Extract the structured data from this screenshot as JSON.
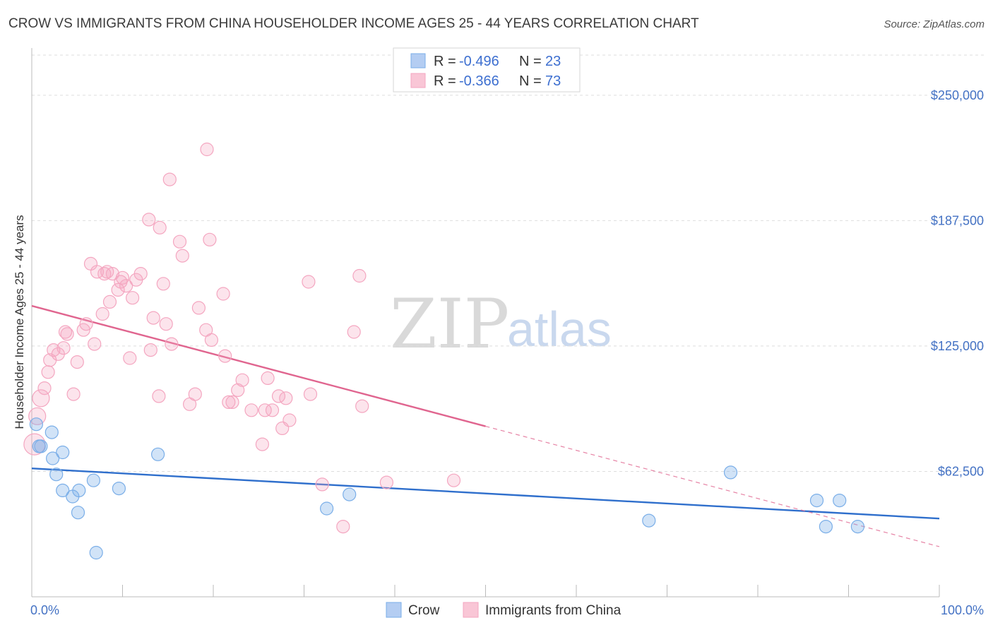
{
  "chart_data": {
    "type": "scatter",
    "title": "CROW VS IMMIGRANTS FROM CHINA HOUSEHOLDER INCOME AGES 25 - 44 YEARS CORRELATION CHART",
    "source": "Source: ZipAtlas.com",
    "watermark": {
      "zip": "ZIP",
      "atlas": "atlas"
    },
    "ylabel": "Householder Income Ages 25 - 44 years",
    "xlim": [
      0,
      100
    ],
    "ylim": [
      0,
      270000
    ],
    "x_ticks": [
      "0.0%",
      "100.0%"
    ],
    "y_ticks": [
      {
        "value": 62500,
        "label": "$62,500"
      },
      {
        "value": 125000,
        "label": "$125,000"
      },
      {
        "value": 187500,
        "label": "$187,500"
      },
      {
        "value": 250000,
        "label": "$250,000"
      }
    ],
    "legend": [
      {
        "series": "Crow",
        "r_label": "R =",
        "r_value": "-0.496",
        "n_label": "N =",
        "n_value": "23"
      },
      {
        "series": "Immigrants from China",
        "r_label": "R =",
        "r_value": "-0.366",
        "n_label": "N =",
        "n_value": "73"
      }
    ],
    "series": [
      {
        "name": "Crow",
        "color": "#7aaee8",
        "line_color": "#2f6fcc",
        "trend": {
          "x0": 0,
          "y0": 64000,
          "x1": 100,
          "y1": 39000
        },
        "points": [
          [
            0.5,
            86000
          ],
          [
            1.0,
            75000
          ],
          [
            2.2,
            82000
          ],
          [
            2.3,
            69000
          ],
          [
            2.7,
            61000
          ],
          [
            3.4,
            53000
          ],
          [
            3.4,
            72000
          ],
          [
            4.5,
            50000
          ],
          [
            5.1,
            42000
          ],
          [
            5.2,
            53000
          ],
          [
            6.8,
            58000
          ],
          [
            7.1,
            22000
          ],
          [
            9.6,
            54000
          ],
          [
            13.9,
            71000
          ],
          [
            32.5,
            44000
          ],
          [
            35.0,
            51000
          ],
          [
            68.0,
            38000
          ],
          [
            77.0,
            62000
          ],
          [
            86.5,
            48000
          ],
          [
            87.5,
            35000
          ],
          [
            89.0,
            48000
          ],
          [
            91.0,
            35000
          ],
          [
            0.8,
            75000
          ]
        ]
      },
      {
        "name": "Immigrants from China",
        "color": "#f4a6c0",
        "line_color": "#e0658f",
        "trend": {
          "x0": 0,
          "y0": 145000,
          "x1": 50,
          "y1": 85000
        },
        "trend_dashed": {
          "x0": 50,
          "y0": 85000,
          "x1": 100,
          "y1": 25000
        },
        "points": [
          [
            0.3,
            76000
          ],
          [
            0.6,
            90000
          ],
          [
            1.0,
            99000
          ],
          [
            1.4,
            104000
          ],
          [
            1.8,
            112000
          ],
          [
            2.0,
            118000
          ],
          [
            2.4,
            123000
          ],
          [
            2.9,
            121000
          ],
          [
            3.5,
            124000
          ],
          [
            3.7,
            132000
          ],
          [
            3.9,
            131000
          ],
          [
            4.6,
            101000
          ],
          [
            5.0,
            117000
          ],
          [
            5.7,
            133000
          ],
          [
            6.0,
            136000
          ],
          [
            6.5,
            166000
          ],
          [
            6.9,
            126000
          ],
          [
            7.2,
            162000
          ],
          [
            7.8,
            141000
          ],
          [
            8.0,
            161000
          ],
          [
            8.3,
            162000
          ],
          [
            8.6,
            147000
          ],
          [
            8.9,
            161000
          ],
          [
            9.5,
            153000
          ],
          [
            10.0,
            159000
          ],
          [
            10.4,
            155000
          ],
          [
            10.8,
            119000
          ],
          [
            11.1,
            149000
          ],
          [
            11.5,
            158000
          ],
          [
            12.0,
            161000
          ],
          [
            12.9,
            188000
          ],
          [
            13.1,
            123000
          ],
          [
            13.4,
            139000
          ],
          [
            14.0,
            100000
          ],
          [
            14.1,
            184000
          ],
          [
            14.5,
            156000
          ],
          [
            14.8,
            136000
          ],
          [
            15.2,
            208000
          ],
          [
            15.4,
            126000
          ],
          [
            16.3,
            177000
          ],
          [
            16.6,
            170000
          ],
          [
            17.4,
            96000
          ],
          [
            18.0,
            101000
          ],
          [
            18.4,
            144000
          ],
          [
            19.2,
            133000
          ],
          [
            19.3,
            223000
          ],
          [
            19.6,
            178000
          ],
          [
            19.8,
            128000
          ],
          [
            21.1,
            151000
          ],
          [
            21.3,
            120000
          ],
          [
            21.7,
            97000
          ],
          [
            22.1,
            97000
          ],
          [
            22.7,
            103000
          ],
          [
            23.2,
            108000
          ],
          [
            24.2,
            93000
          ],
          [
            25.4,
            76000
          ],
          [
            25.7,
            93000
          ],
          [
            26.0,
            109000
          ],
          [
            26.5,
            93000
          ],
          [
            27.2,
            100000
          ],
          [
            27.6,
            84000
          ],
          [
            28.0,
            99000
          ],
          [
            28.4,
            88000
          ],
          [
            30.7,
            101000
          ],
          [
            30.5,
            157000
          ],
          [
            32.0,
            56000
          ],
          [
            34.3,
            35000
          ],
          [
            35.5,
            132000
          ],
          [
            36.1,
            160000
          ],
          [
            36.4,
            95000
          ],
          [
            39.1,
            57000
          ],
          [
            46.5,
            58000
          ],
          [
            9.8,
            157000
          ]
        ]
      }
    ]
  }
}
